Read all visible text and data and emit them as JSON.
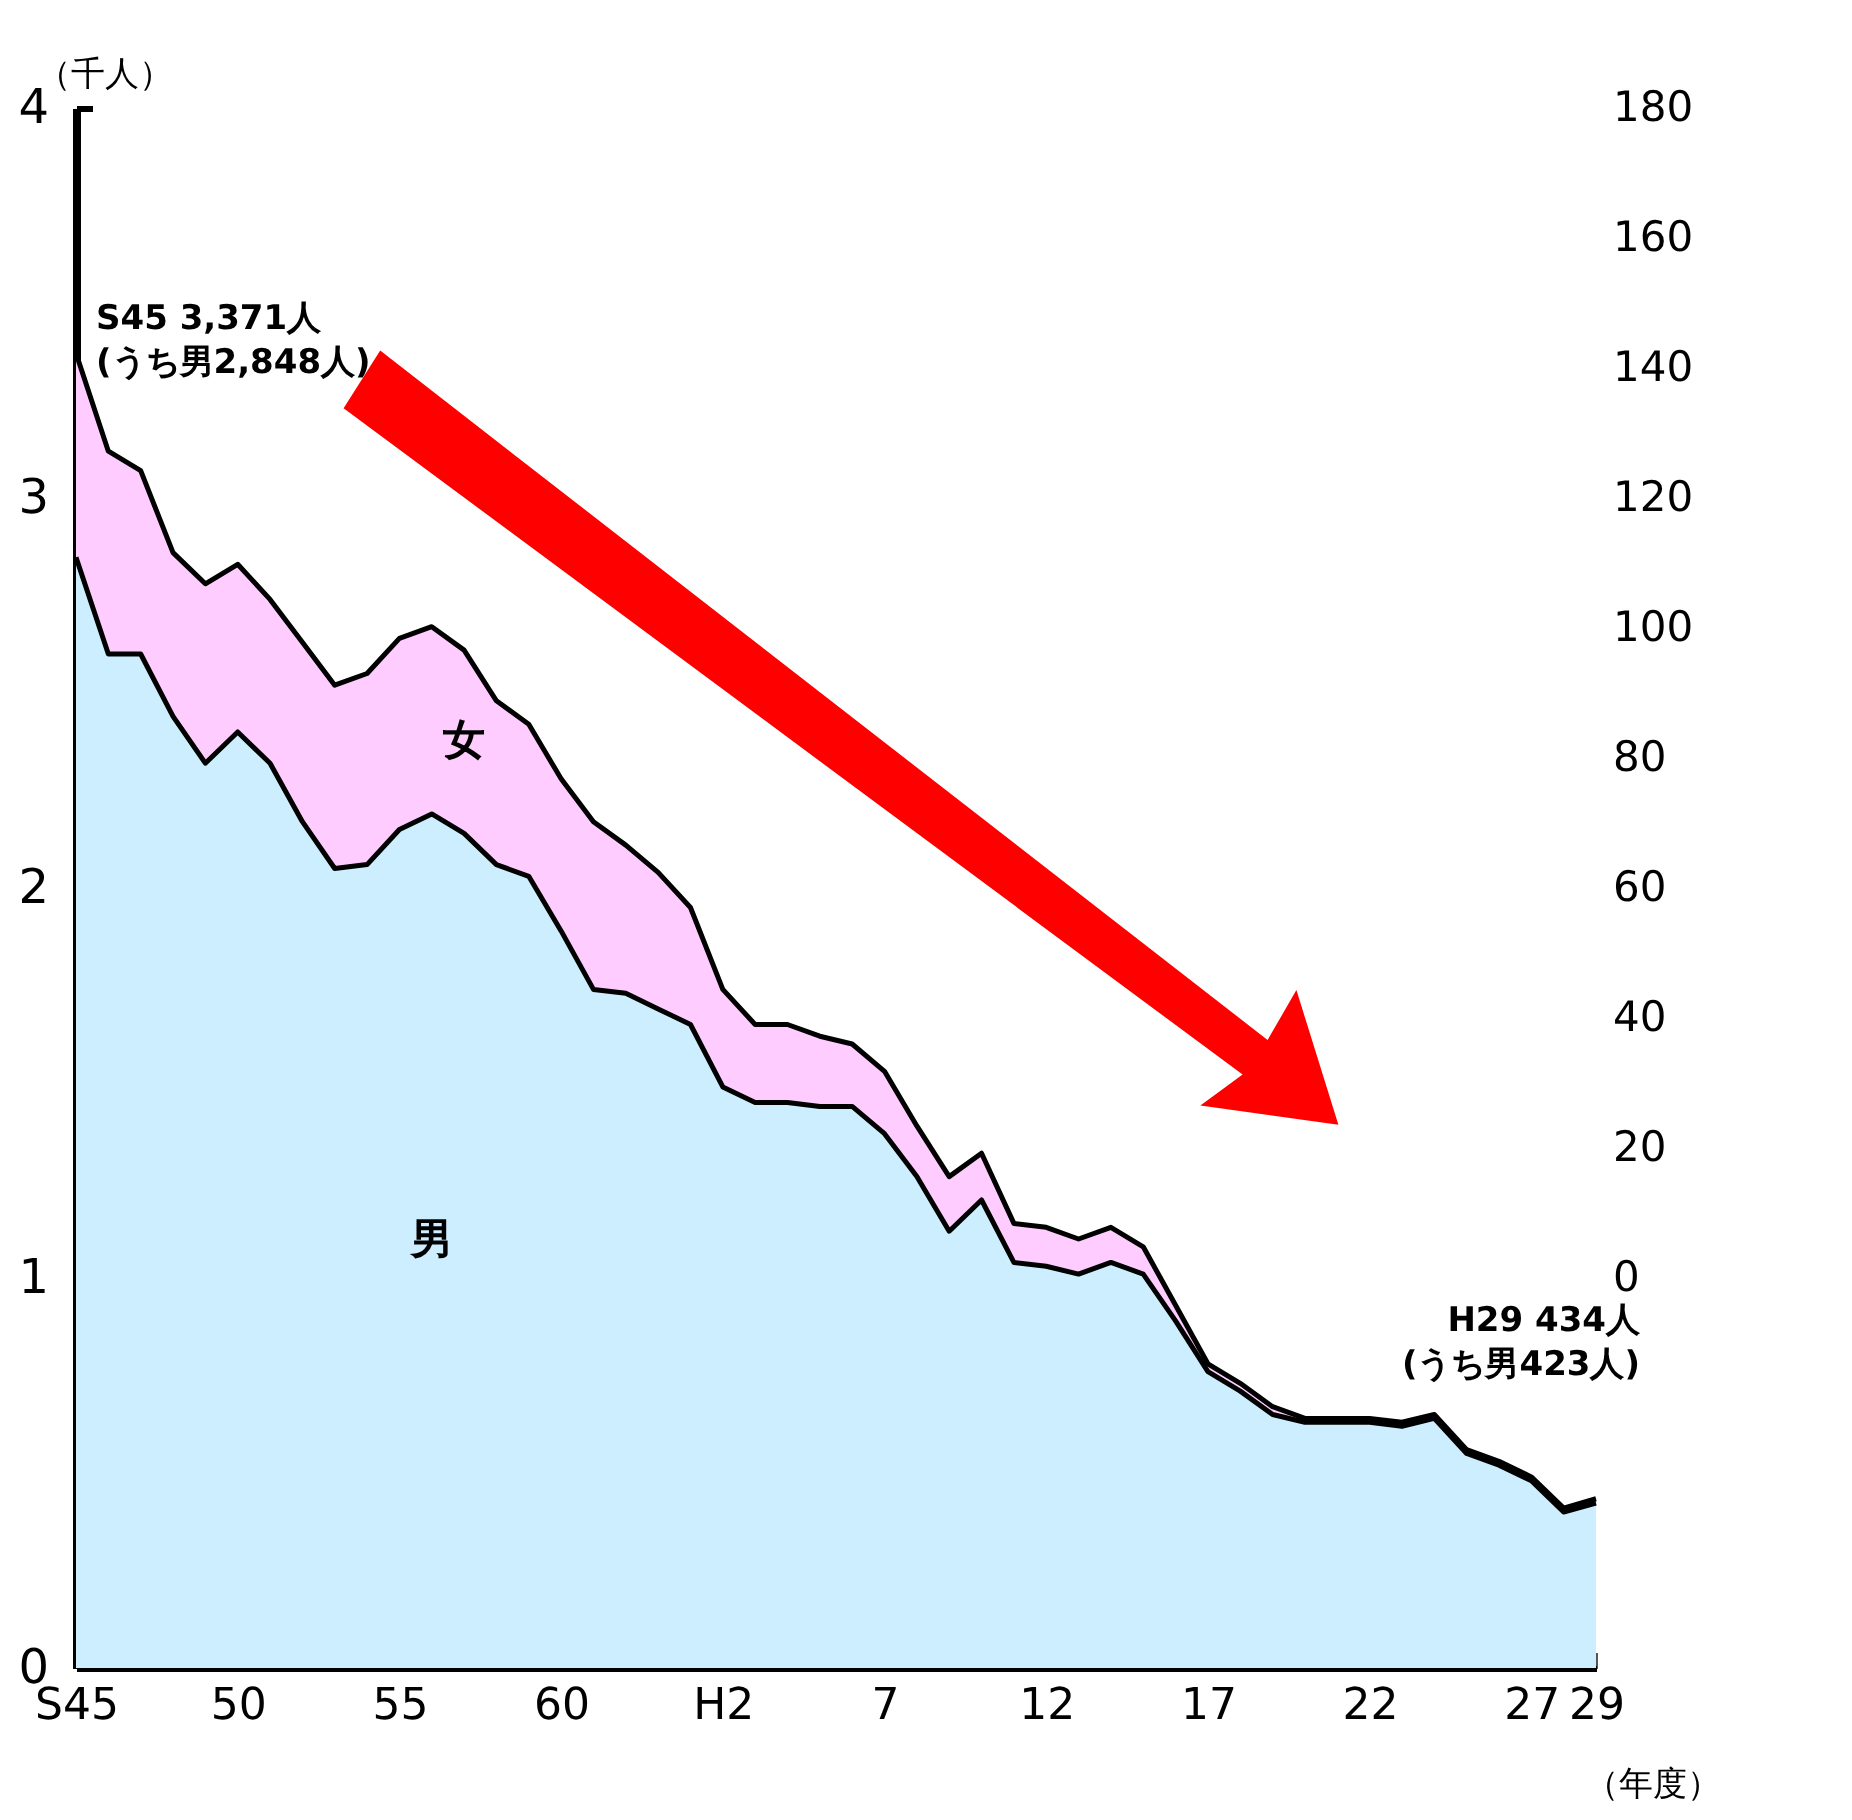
{
  "chart_data": {
    "type": "area",
    "stacked": true,
    "ylabel": "（千人）",
    "xlabel": "（年度）",
    "categories": [
      "S45",
      null,
      null,
      null,
      null,
      "50",
      null,
      null,
      null,
      null,
      "55",
      null,
      null,
      null,
      null,
      "60",
      null,
      null,
      null,
      null,
      "H2",
      null,
      null,
      null,
      null,
      "7",
      null,
      null,
      null,
      null,
      "12",
      null,
      null,
      null,
      null,
      "17",
      null,
      null,
      null,
      null,
      "22",
      null,
      null,
      null,
      null,
      "27",
      null,
      "29"
    ],
    "ylim": [
      0,
      4
    ],
    "yticks": [
      0,
      1,
      2,
      3,
      4
    ],
    "y2lim": [
      -60,
      180
    ],
    "y2ticks": [
      0,
      20,
      40,
      60,
      80,
      100,
      120,
      140,
      160,
      180
    ],
    "series": [
      {
        "name": "男",
        "color": "#cceeff",
        "values": [
          2.848,
          2.6,
          2.6,
          2.44,
          2.32,
          2.4,
          2.32,
          2.17,
          2.05,
          2.06,
          2.15,
          2.19,
          2.14,
          2.06,
          2.03,
          1.89,
          1.74,
          1.73,
          1.69,
          1.65,
          1.49,
          1.45,
          1.45,
          1.44,
          1.44,
          1.37,
          1.26,
          1.12,
          1.2,
          1.04,
          1.03,
          1.01,
          1.04,
          1.01,
          0.89,
          0.76,
          0.71,
          0.65,
          0.63,
          0.63,
          0.63,
          0.62,
          0.64,
          0.55,
          0.52,
          0.48,
          0.4,
          0.423
        ]
      },
      {
        "name": "女",
        "color": "#ffccff",
        "values": [
          0.523,
          0.52,
          0.47,
          0.42,
          0.46,
          0.43,
          0.42,
          0.46,
          0.47,
          0.49,
          0.49,
          0.48,
          0.47,
          0.42,
          0.39,
          0.39,
          0.43,
          0.38,
          0.35,
          0.3,
          0.25,
          0.2,
          0.2,
          0.18,
          0.16,
          0.16,
          0.13,
          0.14,
          0.12,
          0.1,
          0.1,
          0.09,
          0.09,
          0.07,
          0.04,
          0.02,
          0.02,
          0.02,
          0.01,
          0.01,
          0.01,
          0.01,
          0.01,
          0.01,
          0.01,
          0.01,
          0.01,
          0.011
        ]
      }
    ],
    "annotations": [
      "S45 3,371人\n(うち男2,848人)",
      "H29  434人\n(うち男423人)"
    ]
  }
}
